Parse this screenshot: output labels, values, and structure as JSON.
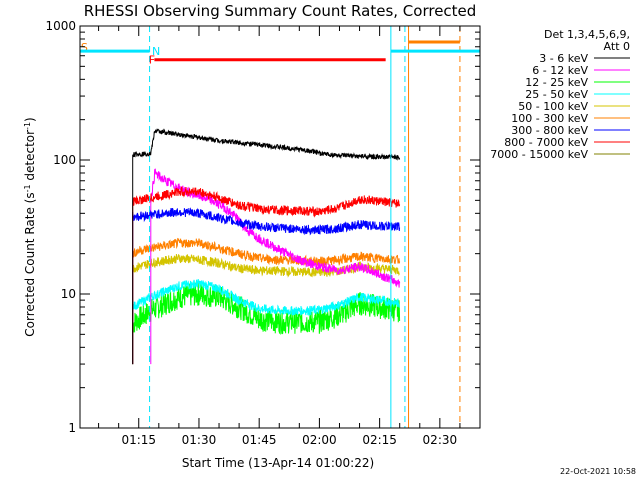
{
  "chart_data": {
    "type": "line",
    "title": "RHESSI Observing Summary Count Rates, Corrected",
    "xlabel": "Start Time (13-Apr-14 01:00:22)",
    "ylabel_main": "Corrected Count Rate (s",
    "ylabel_exp1": "-1",
    "ylabel_mid": " detector",
    "ylabel_exp2": "-1",
    "ylabel_end": ")",
    "y_scale": "log",
    "ylim": [
      1,
      1000
    ],
    "x_units": "minutes after 01:00:00",
    "xlim": [
      0.37,
      100
    ],
    "x_ticks": [
      {
        "label": "01:15",
        "value": 15
      },
      {
        "label": "01:30",
        "value": 30
      },
      {
        "label": "01:45",
        "value": 45
      },
      {
        "label": "02:00",
        "value": 60
      },
      {
        "label": "02:15",
        "value": 75
      },
      {
        "label": "02:30",
        "value": 90
      }
    ],
    "y_ticks": [
      {
        "label": "1",
        "value": 1
      },
      {
        "label": "10",
        "value": 10
      },
      {
        "label": "100",
        "value": 100
      },
      {
        "label": "1000",
        "value": 1000
      }
    ],
    "legend": {
      "placement": "right",
      "header_1": "Det 1,3,4,5,6,9,",
      "header_2": "Att 0"
    },
    "series": [
      {
        "name": "3 - 6 keV",
        "color": "#000000",
        "x": [
          13.5,
          18,
          19,
          25,
          35,
          45,
          55,
          59,
          60,
          65,
          75,
          80
        ],
        "y": [
          110,
          112,
          165,
          155,
          140,
          130,
          120,
          115,
          112,
          108,
          105,
          105
        ]
      },
      {
        "name": "6 - 12 keV",
        "color": "#ff00ff",
        "x": [
          18,
          19,
          21,
          24,
          27,
          30,
          33,
          36,
          39,
          42,
          45,
          48,
          52,
          55,
          60,
          65,
          70,
          75,
          80
        ],
        "y": [
          50,
          80,
          72,
          64,
          58,
          54,
          50,
          45,
          38,
          30,
          26,
          23,
          20,
          18,
          16,
          15,
          16,
          14,
          12
        ]
      },
      {
        "name": "12 - 25 keV",
        "color": "#00ff00",
        "x": [
          13.5,
          15,
          18,
          25,
          30,
          35,
          40,
          45,
          50,
          55,
          60,
          65,
          70,
          75,
          80
        ],
        "y": [
          6,
          6.5,
          7.5,
          9.5,
          10,
          9.5,
          8,
          6.5,
          6.2,
          6.2,
          6.2,
          7,
          8.5,
          8,
          7.5
        ]
      },
      {
        "name": "25 - 50 keV",
        "color": "#00ffff",
        "x": [
          13.5,
          15,
          18,
          25,
          30,
          35,
          40,
          45,
          50,
          55,
          60,
          65,
          70,
          75,
          80
        ],
        "y": [
          8,
          8.5,
          9.5,
          11.5,
          12,
          11,
          9,
          7.8,
          7.5,
          7.5,
          7.6,
          8.3,
          9.5,
          9,
          8.5
        ]
      },
      {
        "name": "50 - 100 keV",
        "color": "#d4c400",
        "x": [
          13.5,
          15,
          18,
          25,
          30,
          35,
          40,
          45,
          50,
          55,
          60,
          65,
          70,
          75,
          80
        ],
        "y": [
          15.5,
          16,
          17,
          18.5,
          18,
          17,
          15.5,
          15,
          14.8,
          14.6,
          14.5,
          14.8,
          16,
          15.5,
          15
        ]
      },
      {
        "name": "100 - 300 keV",
        "color": "#ff8000",
        "x": [
          13.5,
          15,
          18,
          25,
          30,
          35,
          40,
          45,
          50,
          55,
          60,
          65,
          70,
          75,
          80
        ],
        "y": [
          20,
          21,
          22,
          24,
          24,
          22,
          20,
          18.5,
          18,
          17.8,
          17.5,
          18,
          19,
          18.5,
          18
        ]
      },
      {
        "name": "300 - 800 keV",
        "color": "#0000ff",
        "x": [
          13.5,
          15,
          18,
          25,
          30,
          35,
          40,
          45,
          50,
          55,
          60,
          65,
          70,
          75,
          80
        ],
        "y": [
          38,
          38,
          39,
          41,
          40,
          37,
          34,
          32,
          31,
          30.5,
          30,
          31,
          33,
          32,
          32
        ]
      },
      {
        "name": "800 - 7000 keV",
        "color": "#ff0000",
        "x": [
          13.5,
          15,
          18,
          25,
          30,
          35,
          40,
          45,
          50,
          55,
          60,
          65,
          70,
          75,
          80
        ],
        "y": [
          49,
          50,
          52,
          58,
          58,
          52,
          46,
          43,
          42,
          42,
          41,
          44,
          51,
          49,
          47
        ]
      },
      {
        "name": "7000 - 15000 keV",
        "color": "#808000",
        "x": [],
        "y": []
      }
    ],
    "state_bars": [
      {
        "label": "S",
        "color": "#ff8000",
        "label_x": 0.6,
        "y": 700,
        "segments": []
      },
      {
        "label": "N",
        "color": "#00e5ff",
        "label_x": 18.3,
        "y": 650,
        "segments": [
          [
            0.37,
            17.7
          ],
          [
            77.8,
            100
          ]
        ]
      },
      {
        "label": "F",
        "color": "#ff0000",
        "label_x": 17.5,
        "y": 560,
        "segments": [
          [
            18.9,
            76.5
          ]
        ]
      },
      {
        "label": "",
        "color": "#ff8000",
        "label_x": 0,
        "y": 760,
        "segments": [
          [
            82.2,
            95
          ]
        ]
      }
    ],
    "vertical_lines": [
      {
        "x": 0.37,
        "color": "#00e5ff",
        "dashed": true
      },
      {
        "x": 17.7,
        "color": "#00e5ff",
        "dashed": true
      },
      {
        "x": 77.8,
        "color": "#00e5ff",
        "dashed": false
      },
      {
        "x": 81.3,
        "color": "#00e5ff",
        "dashed": true
      },
      {
        "x": 82.2,
        "color": "#ff8000",
        "dashed": false
      },
      {
        "x": 95,
        "color": "#ff8000",
        "dashed": true
      }
    ]
  },
  "footer": {
    "timestamp": "22-Oct-2021 10:58"
  }
}
